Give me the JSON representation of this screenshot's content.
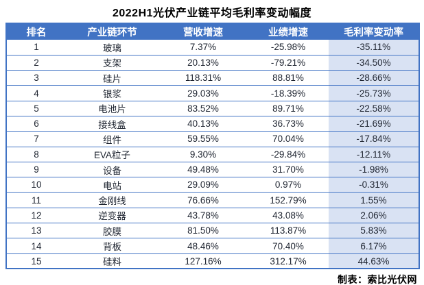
{
  "title": "2022H1光伏产业链平均毛利率变动幅度",
  "footer": "制表：索比光伏网",
  "colors": {
    "header_bg": "#4173C4",
    "header_text": "#ffffff",
    "row_border": "#4173C4",
    "highlight_column_bg": "#D9E2F3",
    "body_text": "#1e2430",
    "title_text": "#000000"
  },
  "chart_data": {
    "type": "table",
    "title": "2022H1光伏产业链平均毛利率变动幅度",
    "columns": [
      "排名",
      "产业链环节",
      "营收增速",
      "业绩增速",
      "毛利率变动率"
    ],
    "highlight_column_index": 4,
    "rows": [
      [
        "1",
        "玻璃",
        "7.37%",
        "-25.98%",
        "-35.11%"
      ],
      [
        "2",
        "支架",
        "20.13%",
        "-79.21%",
        "-34.50%"
      ],
      [
        "3",
        "硅片",
        "118.31%",
        "88.81%",
        "-28.66%"
      ],
      [
        "4",
        "银浆",
        "29.03%",
        "-18.39%",
        "-25.73%"
      ],
      [
        "5",
        "电池片",
        "83.52%",
        "89.71%",
        "-22.58%"
      ],
      [
        "6",
        "接线盒",
        "40.13%",
        "36.73%",
        "-21.69%"
      ],
      [
        "7",
        "组件",
        "59.55%",
        "70.04%",
        "-17.84%"
      ],
      [
        "8",
        "EVA粒子",
        "9.30%",
        "-29.84%",
        "-12.11%"
      ],
      [
        "9",
        "设备",
        "49.48%",
        "31.70%",
        "-1.98%"
      ],
      [
        "10",
        "电站",
        "29.09%",
        "0.97%",
        "-0.31%"
      ],
      [
        "11",
        "金刚线",
        "76.66%",
        "152.79%",
        "1.55%"
      ],
      [
        "12",
        "逆变器",
        "43.78%",
        "43.08%",
        "2.06%"
      ],
      [
        "13",
        "胶膜",
        "81.50%",
        "113.87%",
        "5.83%"
      ],
      [
        "14",
        "背板",
        "48.46%",
        "70.40%",
        "6.17%"
      ],
      [
        "15",
        "硅料",
        "127.16%",
        "312.17%",
        "44.63%"
      ]
    ]
  }
}
